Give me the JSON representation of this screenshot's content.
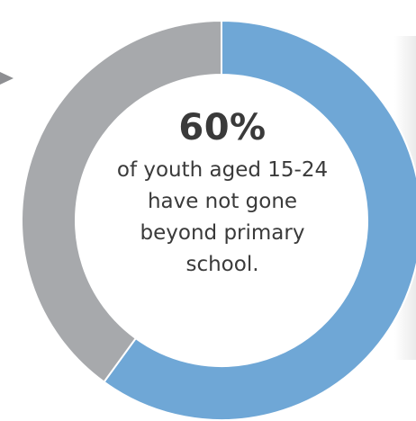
{
  "chart_data": {
    "type": "pie",
    "variant": "donut",
    "slices": [
      {
        "label": "",
        "value": 60,
        "color": "#6fa7d6"
      },
      {
        "label": "",
        "value": 40,
        "color": "#a7a9ac"
      }
    ],
    "center_text": {
      "value": "60%",
      "lines": [
        "of youth aged 15-24",
        "have not gone",
        "beyond primary",
        "school."
      ]
    }
  },
  "colors": {
    "primary_slice": "#6fa7d6",
    "secondary_slice": "#a7a9ac",
    "separator": "#ffffff",
    "text": "#3a3a3a",
    "arrow": "#8e8f92"
  }
}
